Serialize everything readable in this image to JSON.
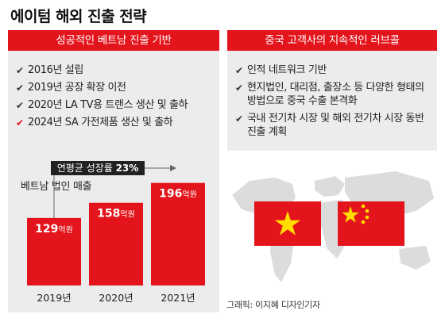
{
  "page": {
    "title": "에이텀 해외 진출 전략",
    "credit": "그래픽: 이지혜 디자인기자"
  },
  "left_panel": {
    "header": "성공적인 베트남 진출 기반",
    "items": [
      {
        "text": "2016년 설립",
        "highlight": false
      },
      {
        "text": "2019년 공장 확장 이전",
        "highlight": false
      },
      {
        "text": "2020년 LA TV용 트랜스 생산 및 출하",
        "highlight": false
      },
      {
        "text": "2024년 SA 가전제품 생산 및 출하",
        "highlight": true
      }
    ],
    "chart_title": "베트남 법인 매출"
  },
  "right_panel": {
    "header": "중국 고객사의 지속적인 러브콜",
    "items": [
      {
        "text": "인적 네트워크 기반"
      },
      {
        "text": "현지법인, 대리점, 출장소 등 다양한 형태의 방법으로 중국 수출 본격화"
      },
      {
        "text": "국내 전기차 시장 및 해외 전기차 시장 동반 진출 계획"
      }
    ]
  },
  "chart_data": {
    "type": "bar",
    "title": "베트남 법인 매출",
    "categories": [
      "2019년",
      "2020년",
      "2021년"
    ],
    "values": [
      129,
      158,
      196
    ],
    "value_unit": "억원",
    "annotation": {
      "label": "연평균 성장률",
      "value": "23%"
    },
    "colors": {
      "bar": "#e3141b",
      "annotation_bg": "#222222"
    }
  },
  "flags": [
    {
      "country": "Vietnam",
      "icon": "vietnam-flag-icon"
    },
    {
      "country": "China",
      "icon": "china-flag-icon"
    }
  ],
  "colors": {
    "accent": "#e3141b",
    "panel_bg": "#ececec"
  }
}
